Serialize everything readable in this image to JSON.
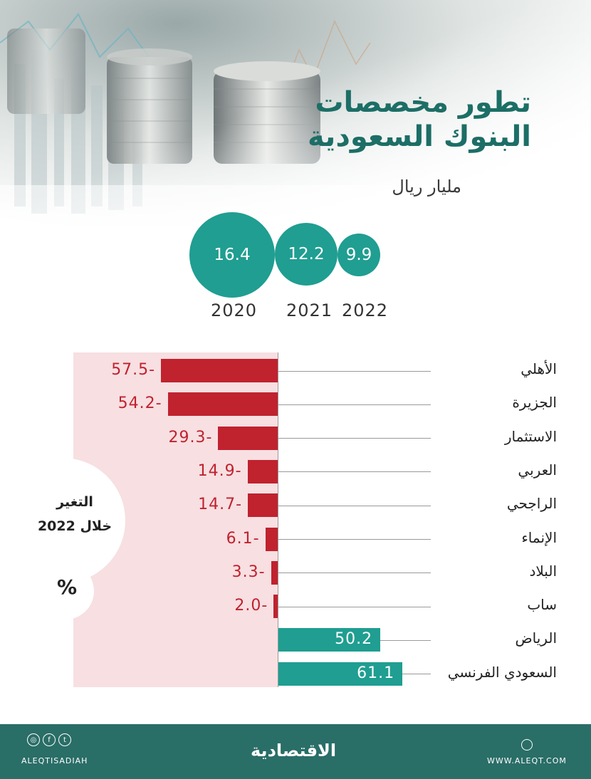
{
  "header": {
    "title_line1": "تطور مخصصات",
    "title_line2": "البنوك السعودية",
    "unit": "مليار ريال"
  },
  "totals": [
    {
      "year": "2020",
      "value": "16.4"
    },
    {
      "year": "2021",
      "value": "12.2"
    },
    {
      "year": "2022",
      "value": "9.9"
    }
  ],
  "side_label": {
    "line1": "التغير",
    "line2": "خلال 2022",
    "unit": "%"
  },
  "chart_data": {
    "type": "bar",
    "orientation": "horizontal",
    "categories": [
      "الأهلي",
      "الجزيرة",
      "الاستثمار",
      "العربي",
      "الراجحي",
      "الإنماء",
      "البلاد",
      "ساب",
      "الرياض",
      "السعودي الفرنسي"
    ],
    "values": [
      -57.5,
      -54.2,
      -29.3,
      -14.9,
      -14.7,
      -6.1,
      -3.3,
      -2.0,
      50.2,
      61.1
    ],
    "labels": [
      "57.5-",
      "54.2-",
      "29.3-",
      "14.9-",
      "14.7-",
      "6.1-",
      "3.3-",
      "2.0-",
      "50.2",
      "61.1"
    ],
    "colors": {
      "negative": "#c0222e",
      "positive": "#1f9e91"
    }
  },
  "footer": {
    "brand": "الاقتصادية",
    "handle": "ALEQTISADIAH",
    "website": "WWW.ALEQT.COM",
    "icons": [
      "instagram-icon",
      "facebook-icon",
      "twitter-icon",
      "web-icon"
    ]
  }
}
